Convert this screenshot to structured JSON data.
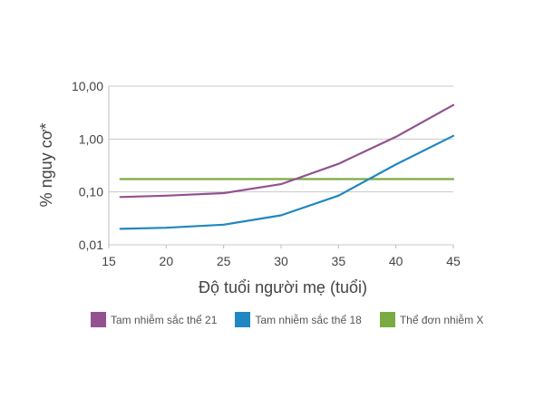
{
  "chart_data": {
    "type": "line",
    "xlabel": "Độ tuổi người mẹ (tuổi)",
    "ylabel": "% nguy cơ*",
    "x_ticks": [
      15,
      20,
      25,
      30,
      35,
      40,
      45
    ],
    "y_scale": "log",
    "y_ticks": [
      0.01,
      0.1,
      1,
      10
    ],
    "y_tick_labels": [
      "0,01",
      "0,10",
      "1,00",
      "10,00"
    ],
    "xlim": [
      15,
      45
    ],
    "ylim": [
      0.01,
      10
    ],
    "grid": "horizontal",
    "legend_position": "bottom",
    "series": [
      {
        "name": "Tam nhiễm sắc thể 21",
        "color": "#92528f",
        "x": [
          16,
          20,
          25,
          30,
          35,
          40,
          45
        ],
        "y": [
          0.08,
          0.085,
          0.095,
          0.14,
          0.34,
          1.1,
          4.4
        ]
      },
      {
        "name": "Tam nhiễm sắc thể 18",
        "color": "#1f87c1",
        "x": [
          16,
          20,
          25,
          30,
          35,
          40,
          45
        ],
        "y": [
          0.02,
          0.021,
          0.024,
          0.036,
          0.085,
          0.33,
          1.15
        ]
      },
      {
        "name": "Thể đơn nhiễm X",
        "color": "#7aab42",
        "x": [
          16,
          45
        ],
        "y": [
          0.175,
          0.175
        ]
      }
    ]
  }
}
